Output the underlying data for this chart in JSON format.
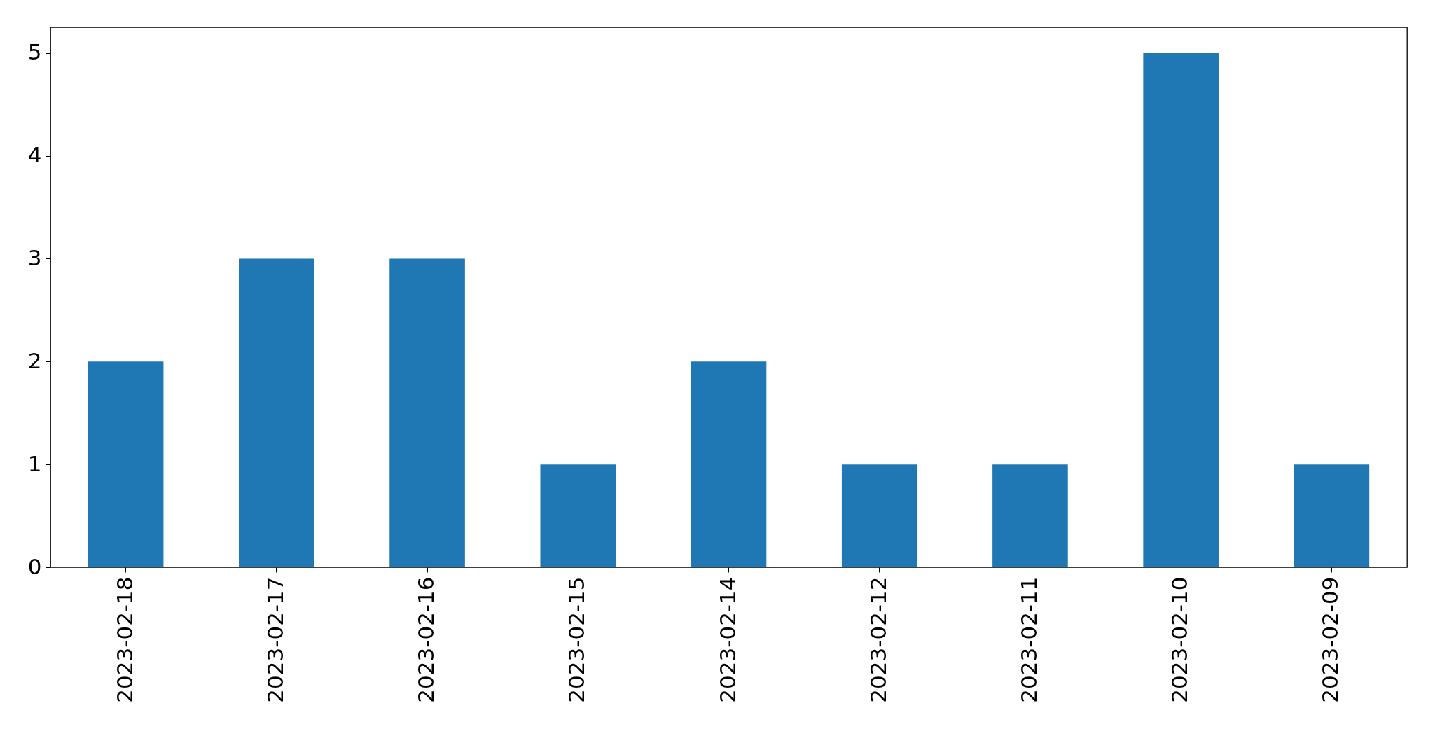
{
  "chart_data": {
    "type": "bar",
    "categories": [
      "2023-02-18",
      "2023-02-17",
      "2023-02-16",
      "2023-02-15",
      "2023-02-14",
      "2023-02-12",
      "2023-02-11",
      "2023-02-10",
      "2023-02-09"
    ],
    "values": [
      2,
      3,
      3,
      1,
      2,
      1,
      1,
      5,
      1
    ],
    "color": "#1f77b4",
    "ylim": [
      0,
      5.25
    ],
    "yticks": [
      0,
      1,
      2,
      3,
      4,
      5
    ]
  }
}
